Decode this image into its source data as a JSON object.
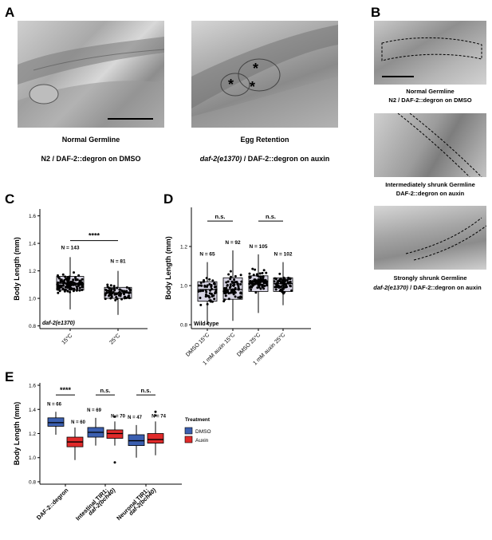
{
  "panel_labels": {
    "a": "A",
    "b": "B",
    "c": "C",
    "d": "D",
    "e": "E"
  },
  "panel_a": {
    "left": {
      "title": "Normal Germline",
      "subtitle": "N2 / DAF-2::degron on DMSO"
    },
    "right": {
      "title": "Egg Retention",
      "subtitle_italic": "daf-2(e1370)",
      "subtitle_rest": " / DAF-2::degron on auxin",
      "marker": "*"
    }
  },
  "panel_b": [
    {
      "line1": "Normal Germline",
      "line2": "N2 / DAF-2::degron on DMSO"
    },
    {
      "line1": "Intermediately shrunk Germline",
      "line2": "DAF-2::degron on auxin"
    },
    {
      "line1": "Strongly shrunk Germline",
      "line2_italic": "daf-2(e1370)",
      "line2_rest": " / DAF-2::degron on auxin"
    }
  ],
  "colors": {
    "box_grey": "#d6d3e2",
    "dmso": "#3b5fb0",
    "auxin": "#e02a2a"
  },
  "chart_data": [
    {
      "id": "C",
      "type": "boxplot",
      "ylabel": "Body Length (mm)",
      "ylim": [
        0.78,
        1.65
      ],
      "yticks": [
        0.8,
        1.0,
        1.2,
        1.4,
        1.6
      ],
      "categories": [
        "15°C",
        "25°C"
      ],
      "stats": [
        {
          "q1": 1.06,
          "median": 1.11,
          "q3": 1.16,
          "whisker_low": 0.92,
          "whisker_high": 1.3,
          "n": "N = 143"
        },
        {
          "q1": 1.0,
          "median": 1.04,
          "q3": 1.08,
          "whisker_low": 0.88,
          "whisker_high": 1.2,
          "n": "N = 81"
        }
      ],
      "significance": [
        "****"
      ],
      "annotation": "daf-2(e1370)"
    },
    {
      "id": "D",
      "type": "boxplot",
      "ylabel": "Body Length (mm)",
      "ylim": [
        0.78,
        1.4
      ],
      "yticks": [
        0.8,
        1.0,
        1.2
      ],
      "categories": [
        "DMSO 15°C",
        "1 mM auxin 15°C",
        "DMSO 25°C",
        "1 mM auxin 25°C"
      ],
      "stats": [
        {
          "q1": 0.92,
          "median": 0.98,
          "q3": 1.02,
          "whisker_low": 0.8,
          "whisker_high": 1.12,
          "n": "N = 65"
        },
        {
          "q1": 0.93,
          "median": 0.98,
          "q3": 1.04,
          "whisker_low": 0.82,
          "whisker_high": 1.18,
          "n": "N = 92"
        },
        {
          "q1": 0.97,
          "median": 1.02,
          "q3": 1.05,
          "whisker_low": 0.86,
          "whisker_high": 1.16,
          "n": "N = 105"
        },
        {
          "q1": 0.97,
          "median": 1.01,
          "q3": 1.04,
          "whisker_low": 0.9,
          "whisker_high": 1.12,
          "n": "N = 102"
        }
      ],
      "significance": [
        "n.s.",
        "n.s."
      ],
      "annotation": "Wild-type"
    },
    {
      "id": "E",
      "type": "grouped-boxplot",
      "ylabel": "Body Length (mm)",
      "ylim": [
        0.78,
        1.62
      ],
      "yticks": [
        0.8,
        1.0,
        1.2,
        1.4,
        1.6
      ],
      "groups": [
        "DAF-2::degron",
        "Intestinal TIR1; daf-2(bch40)",
        "Neuronal TIR1; daf-2(bch40)"
      ],
      "group_lines": [
        [
          "DAF-2::degron"
        ],
        [
          "Intestinal TIR1;",
          "daf-2(bch40)"
        ],
        [
          "Neuronal TIR1;",
          "daf-2(bch40)"
        ]
      ],
      "legend": {
        "title": "Treatment",
        "items": [
          "DMSO",
          "Auxin"
        ]
      },
      "series": [
        {
          "name": "DMSO",
          "stats": [
            {
              "q1": 1.26,
              "median": 1.29,
              "q3": 1.33,
              "whisker_low": 1.19,
              "whisker_high": 1.38,
              "n": "N = 66"
            },
            {
              "q1": 1.17,
              "median": 1.21,
              "q3": 1.25,
              "whisker_low": 1.1,
              "whisker_high": 1.33,
              "n": "N = 69"
            },
            {
              "q1": 1.1,
              "median": 1.14,
              "q3": 1.19,
              "whisker_low": 1.0,
              "whisker_high": 1.27,
              "n": "N = 47"
            }
          ]
        },
        {
          "name": "Auxin",
          "stats": [
            {
              "q1": 1.09,
              "median": 1.13,
              "q3": 1.17,
              "whisker_low": 0.98,
              "whisker_high": 1.25,
              "n": "N = 60"
            },
            {
              "q1": 1.16,
              "median": 1.2,
              "q3": 1.23,
              "whisker_low": 1.1,
              "whisker_high": 1.3,
              "n": "N = 70",
              "outliers": [
                0.96,
                1.34
              ]
            },
            {
              "q1": 1.12,
              "median": 1.15,
              "q3": 1.2,
              "whisker_low": 1.02,
              "whisker_high": 1.3,
              "n": "N = 74",
              "outliers": [
                1.38,
                1.35
              ]
            }
          ]
        }
      ],
      "significance": [
        "****",
        "n.s.",
        "n.s."
      ]
    }
  ]
}
